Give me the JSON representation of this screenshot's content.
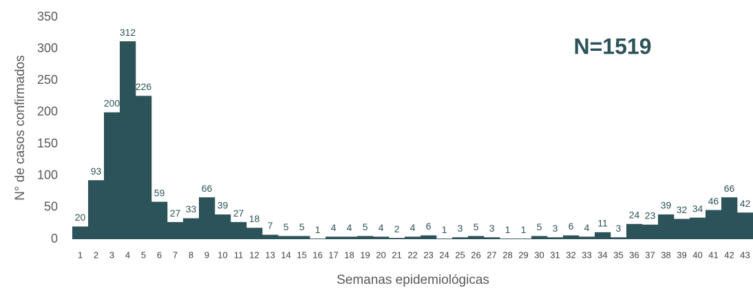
{
  "chart_data": {
    "type": "bar",
    "annotation": "N=1519",
    "x_label": "Semanas epidemiológicas",
    "y_label": "N° de casos confirmados",
    "categories": [
      "1",
      "2",
      "3",
      "4",
      "5",
      "6",
      "7",
      "8",
      "9",
      "10",
      "11",
      "12",
      "13",
      "14",
      "15",
      "16",
      "17",
      "18",
      "19",
      "20",
      "21",
      "22",
      "23",
      "24",
      "25",
      "26",
      "27",
      "28",
      "29",
      "30",
      "31",
      "32",
      "33",
      "34",
      "35",
      "36",
      "37",
      "38",
      "39",
      "40",
      "41",
      "42",
      "43"
    ],
    "values": [
      20,
      93,
      200,
      312,
      226,
      59,
      27,
      33,
      66,
      39,
      27,
      18,
      7,
      5,
      5,
      1,
      4,
      4,
      5,
      4,
      2,
      4,
      6,
      1,
      3,
      5,
      3,
      1,
      1,
      5,
      3,
      6,
      4,
      11,
      3,
      24,
      23,
      39,
      32,
      34,
      46,
      66,
      42
    ],
    "color": "#2b5359",
    "ylim": [
      0,
      350
    ],
    "yticks": [
      0,
      50,
      100,
      150,
      200,
      250,
      300,
      350
    ],
    "grid": false
  }
}
